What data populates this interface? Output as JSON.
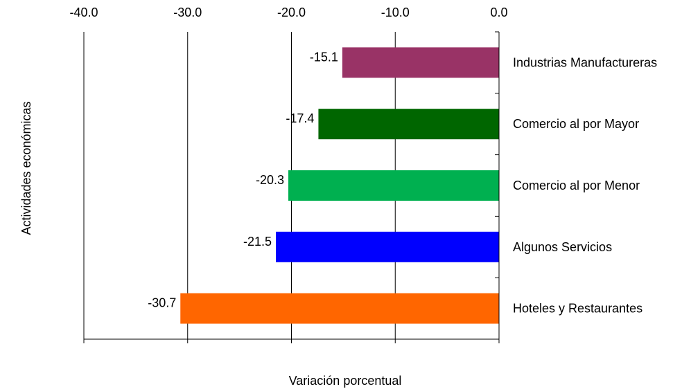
{
  "chart_data": {
    "type": "bar",
    "orientation": "horizontal",
    "categories": [
      "Industrias Manufactureras",
      "Comercio al por Mayor",
      "Comercio al por Menor",
      "Algunos Servicios",
      "Hoteles y Restaurantes"
    ],
    "values": [
      -15.1,
      -17.4,
      -20.3,
      -21.5,
      -30.7
    ],
    "value_labels": [
      "-15.1",
      "-17.4",
      "-20.3",
      "-21.5",
      "-30.7"
    ],
    "colors": [
      "#993366",
      "#006600",
      "#00b050",
      "#0000ff",
      "#ff6600"
    ],
    "xlabel": "Variación porcentual",
    "ylabel": "Actividades económicas",
    "xlim": [
      -40,
      0
    ],
    "xticks": [
      -40,
      -30,
      -20,
      -10,
      0
    ],
    "xtick_labels": [
      "-40.0",
      "-30.0",
      "-20.0",
      "-10.0",
      "0.0"
    ],
    "x_axis_position": "top",
    "vertical_gridlines": true,
    "legend": "none"
  }
}
